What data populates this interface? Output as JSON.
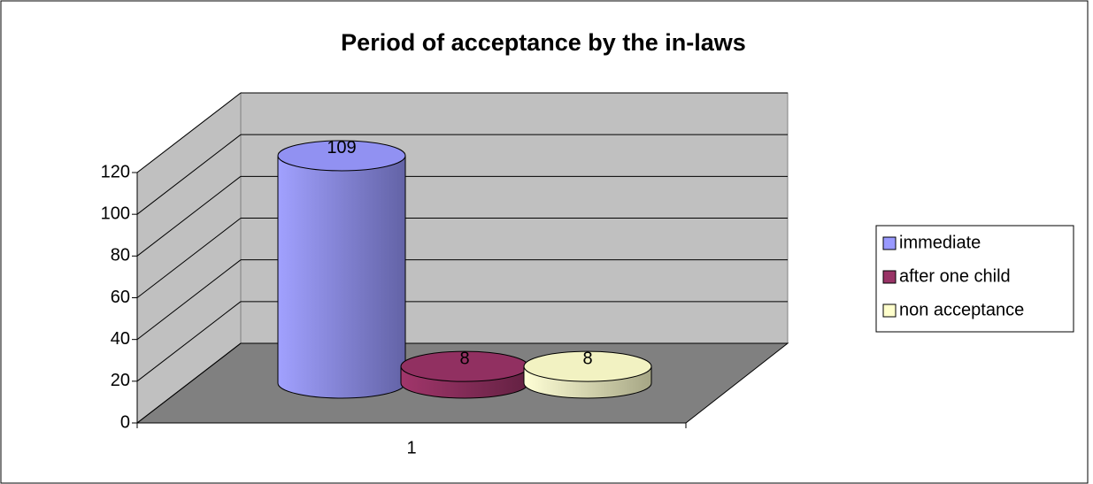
{
  "chart_data": {
    "type": "bar3d",
    "title": "Period of acceptance by the in-laws",
    "categories": [
      "1"
    ],
    "series": [
      {
        "name": "immediate",
        "color": "#9999ff",
        "values": [
          109
        ]
      },
      {
        "name": "after one child",
        "color": "#993366",
        "values": [
          8
        ]
      },
      {
        "name": "non acceptance",
        "color": "#ffffcc",
        "values": [
          8
        ]
      }
    ],
    "ylim": [
      0,
      120
    ],
    "yticks": [
      0,
      20,
      40,
      60,
      80,
      100,
      120
    ],
    "grid": true,
    "legend": "right"
  }
}
